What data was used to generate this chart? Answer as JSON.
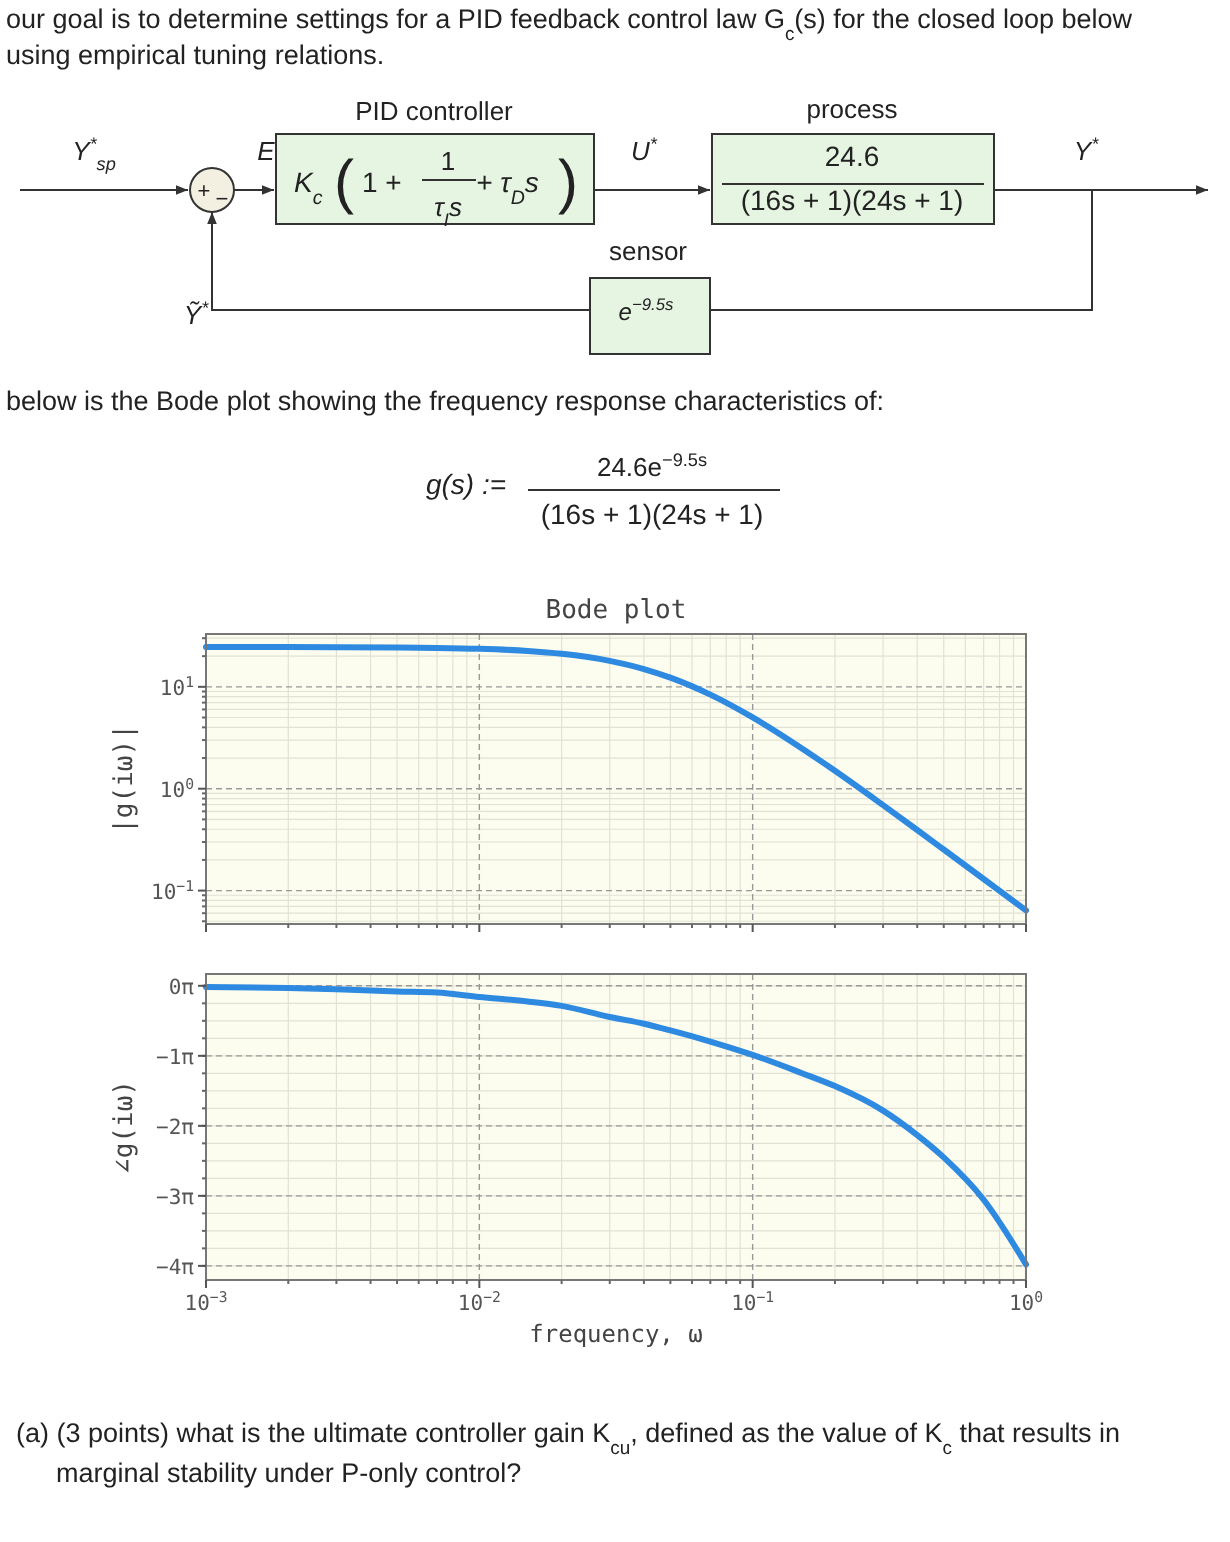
{
  "chart_data": [
    {
      "type": "line",
      "title": "Bode plot",
      "ylabel": "|g(iω)|",
      "log": "xy",
      "grid": true,
      "tick_labels": "y",
      "x": [
        0.001,
        0.002,
        0.003,
        0.005,
        0.007,
        0.01,
        0.015,
        0.02,
        0.03,
        0.04,
        0.05,
        0.07,
        0.1,
        0.15,
        0.2,
        0.3,
        0.4,
        0.5,
        0.7,
        1.0
      ],
      "series": [
        {
          "color": "#2e8ae0",
          "values": [
            24.6,
            24.56,
            24.51,
            24.35,
            24.11,
            23.62,
            22.51,
            21.12,
            18.0,
            14.95,
            12.3,
            8.38,
            5.01,
            2.53,
            1.5,
            0.69,
            0.393,
            0.253,
            0.13,
            0.064
          ]
        }
      ],
      "xlim": [
        0.001,
        1
      ],
      "xticks": [
        {
          "value": 0.001,
          "label": null
        },
        {
          "value": 0.01,
          "label": null
        },
        {
          "value": 0.1,
          "label": null
        },
        {
          "value": 1,
          "label": null
        }
      ],
      "ylim": [
        0.047,
        33
      ],
      "yticks": [
        {
          "value": 0.1,
          "label": "10$^{−1}$"
        },
        {
          "value": 1,
          "label": "10$^{0}$"
        },
        {
          "value": 10,
          "label": "10$^{1}$"
        }
      ],
      "annotations": [
        "our goal is to determine settings for a PID feedback control law G$_{c}$(s) for the closed loop below",
        "using empirical tuning relations.",
        "PID controller",
        "process",
        "Y$^{*}$$_{sp}$",
        "+",
        "−",
        "E",
        "K$_{c}$",
        "(",
        "1 +",
        "1",
        "τ$_{I}$s",
        "+ τ$_{D}$s",
        ")",
        "U$^{*}$",
        "24.6",
        "(16s + 1)(24s + 1)",
        "Y$^{*}$",
        "sensor",
        "e$^{−9.5s}$",
        "Ỹ$^{*}$",
        "below is the Bode plot showing the frequency response characteristics of:",
        "g(s) :=",
        "24.6e$^{−9.5s}$",
        "(16s + 1)(24s + 1)",
        "(a) (3 points) what is the ultimate controller gain K$_{cu}$, defined as the value of K$_{c}$ that results in",
        "marginal stability under P-only control?"
      ]
    },
    {
      "type": "line",
      "ylabel": "∠g(iω)",
      "xlabel": "frequency, ω",
      "log": "x",
      "grid": true,
      "x": [
        0.001,
        0.002,
        0.003,
        0.005,
        0.007,
        0.01,
        0.015,
        0.02,
        0.03,
        0.04,
        0.05,
        0.07,
        0.1,
        0.15,
        0.2,
        0.3,
        0.4,
        0.5,
        0.7,
        1.0
      ],
      "series": [
        {
          "color": "#2e8ae0",
          "values": [
            -0.05,
            -0.1,
            -0.15,
            -0.25,
            -0.3,
            -0.5,
            -0.7,
            -0.9,
            -1.4,
            -1.7,
            -2.0,
            -2.5,
            -3.1,
            -3.9,
            -4.5,
            -5.6,
            -6.7,
            -7.7,
            -9.6,
            -12.5
          ]
        }
      ],
      "xlim": [
        0.001,
        1
      ],
      "xticks": [
        {
          "value": 0.001,
          "label": "10$^{−3}$"
        },
        {
          "value": 0.01,
          "label": "10$^{−2}$"
        },
        {
          "value": 0.1,
          "label": "10$^{−1}$"
        },
        {
          "value": 1,
          "label": "10$^{0}$"
        }
      ],
      "ylim": [
        -13.2,
        0.53
      ],
      "yticks": [
        {
          "value": 0,
          "label": "0π"
        },
        {
          "value": -3.14159,
          "label": "−1π"
        },
        {
          "value": -6.28319,
          "label": "−2π"
        },
        {
          "value": -9.42478,
          "label": "−3π"
        },
        {
          "value": -12.5664,
          "label": "−4π"
        }
      ]
    }
  ]
}
